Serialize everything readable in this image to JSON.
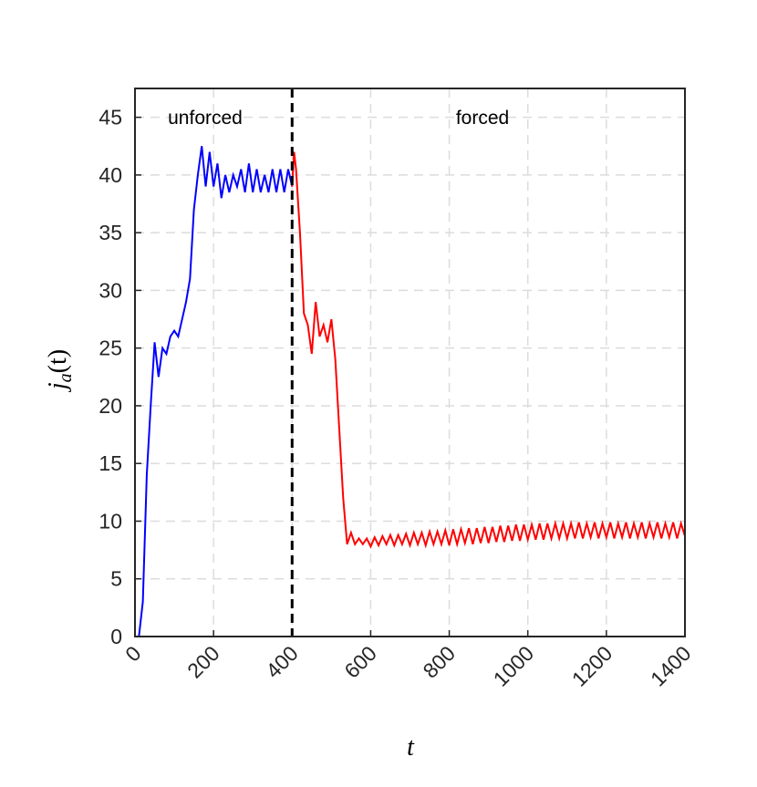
{
  "chart_data": {
    "type": "line",
    "xlabel": "t",
    "ylabel": [
      "j",
      "a",
      "(t)"
    ],
    "xlim": [
      0,
      1400
    ],
    "ylim": [
      0,
      47.5
    ],
    "xticks": [
      0,
      200,
      400,
      600,
      800,
      1000,
      1200,
      1400
    ],
    "yticks": [
      0,
      5,
      10,
      15,
      20,
      25,
      30,
      35,
      40,
      45
    ],
    "grid": true,
    "vlines": [
      400
    ],
    "series": [
      {
        "name": "unforced",
        "color": "#0000ff",
        "x": [
          0,
          10,
          20,
          30,
          40,
          50,
          60,
          70,
          80,
          90,
          100,
          110,
          120,
          130,
          140,
          150,
          160,
          170,
          180,
          190,
          200,
          210,
          220,
          230,
          240,
          250,
          260,
          270,
          280,
          290,
          300,
          310,
          320,
          330,
          340,
          350,
          360,
          370,
          380,
          390,
          400
        ],
        "values": [
          0,
          0,
          3,
          14,
          20,
          25.5,
          22.5,
          25,
          24.5,
          26,
          26.5,
          26,
          27.5,
          29,
          31,
          37,
          40,
          42.5,
          39,
          42,
          39,
          41,
          38,
          40,
          38.5,
          40,
          39,
          40.5,
          38.5,
          41,
          38.5,
          40.5,
          38.5,
          40,
          38.5,
          40.5,
          38.5,
          40.5,
          38.5,
          40.5,
          39
        ]
      },
      {
        "name": "forced",
        "color": "#ff0000",
        "x": [
          400,
          405,
          410,
          420,
          430,
          440,
          450,
          460,
          470,
          480,
          490,
          500,
          510,
          520,
          530,
          540,
          550,
          560,
          570,
          580,
          590,
          600,
          610,
          620,
          630,
          640,
          650,
          660,
          670,
          680,
          690,
          700,
          710,
          720,
          730,
          740,
          750,
          760,
          770,
          780,
          790,
          800,
          810,
          820,
          830,
          840,
          850,
          860,
          870,
          880,
          890,
          900,
          910,
          920,
          930,
          940,
          950,
          960,
          970,
          980,
          990,
          1000,
          1010,
          1020,
          1030,
          1040,
          1050,
          1060,
          1070,
          1080,
          1090,
          1100,
          1110,
          1120,
          1130,
          1140,
          1150,
          1160,
          1170,
          1180,
          1190,
          1200,
          1210,
          1220,
          1230,
          1240,
          1250,
          1260,
          1270,
          1280,
          1290,
          1300,
          1310,
          1320,
          1330,
          1340,
          1350,
          1360,
          1370,
          1380,
          1390,
          1400
        ],
        "values": [
          39,
          42,
          40.5,
          35,
          28,
          27,
          24.5,
          29,
          26,
          27,
          25.5,
          27.5,
          24,
          18,
          12,
          8,
          9,
          8,
          8.5,
          8,
          8.5,
          7.8,
          8.6,
          7.9,
          8.7,
          8.0,
          8.8,
          7.9,
          8.8,
          8.0,
          8.9,
          7.9,
          9.0,
          8.0,
          9.0,
          7.9,
          9.1,
          8.0,
          9.1,
          8.0,
          9.2,
          7.9,
          9.3,
          8.0,
          9.3,
          8.1,
          9.4,
          8.0,
          9.4,
          8.1,
          9.5,
          8.1,
          9.5,
          8.2,
          9.6,
          8.2,
          9.6,
          8.3,
          9.7,
          8.3,
          9.7,
          8.4,
          9.7,
          8.4,
          9.8,
          8.4,
          9.8,
          8.5,
          9.8,
          8.5,
          9.8,
          8.5,
          9.8,
          8.5,
          9.9,
          8.5,
          9.8,
          8.6,
          9.9,
          8.5,
          9.8,
          8.6,
          9.9,
          8.5,
          9.8,
          8.6,
          9.9,
          8.5,
          9.8,
          8.6,
          9.9,
          8.5,
          9.8,
          8.6,
          9.9,
          8.5,
          9.8,
          8.6,
          9.9,
          8.5,
          9.8,
          8.7
        ]
      }
    ]
  }
}
